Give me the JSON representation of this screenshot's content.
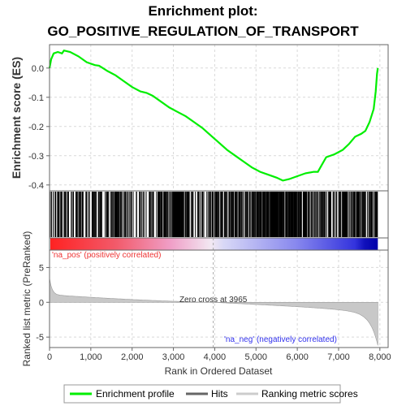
{
  "chart_data": {
    "type": "line",
    "title_line1": "Enrichment plot:",
    "title_line2": "GO_POSITIVE_REGULATION_OF_TRANSPORT",
    "ylabel_top": "Enrichment score (ES)",
    "ylabel_bottom": "Ranked list metric (PreRanked)",
    "xlabel": "Rank in Ordered Dataset",
    "x_range": [
      0,
      8200
    ],
    "es_ylim": [
      -0.42,
      0.08
    ],
    "es_yticks": [
      "0.0",
      "-0.1",
      "-0.2",
      "-0.3",
      "-0.4"
    ],
    "es_ytick_values": [
      0.0,
      -0.1,
      -0.2,
      -0.3,
      -0.4
    ],
    "metric_ylim": [
      -6.5,
      7.5
    ],
    "metric_yticks": [
      "5",
      "0",
      "-5"
    ],
    "metric_ytick_values": [
      5,
      0,
      -5
    ],
    "xticks": [
      "0",
      "1,000",
      "2,000",
      "3,000",
      "4,000",
      "5,000",
      "6,000",
      "7,000",
      "8,000"
    ],
    "xtick_values": [
      0,
      1000,
      2000,
      3000,
      4000,
      5000,
      6000,
      7000,
      8000
    ],
    "zero_cross_label": "Zero cross at 3965",
    "zero_cross": 3965,
    "n_genes": 7950,
    "pos_label": "'na_pos' (positively correlated)",
    "neg_label": "'na_neg' (negatively correlated)",
    "es_curve": [
      [
        0,
        0.0
      ],
      [
        40,
        0.03
      ],
      [
        100,
        0.05
      ],
      [
        200,
        0.055
      ],
      [
        300,
        0.05
      ],
      [
        350,
        0.06
      ],
      [
        500,
        0.055
      ],
      [
        700,
        0.04
      ],
      [
        900,
        0.02
      ],
      [
        1100,
        0.01
      ],
      [
        1200,
        0.008
      ],
      [
        1400,
        -0.01
      ],
      [
        1600,
        -0.025
      ],
      [
        1800,
        -0.045
      ],
      [
        2000,
        -0.065
      ],
      [
        2200,
        -0.08
      ],
      [
        2350,
        -0.085
      ],
      [
        2500,
        -0.095
      ],
      [
        2700,
        -0.115
      ],
      [
        2900,
        -0.135
      ],
      [
        3100,
        -0.15
      ],
      [
        3300,
        -0.165
      ],
      [
        3500,
        -0.185
      ],
      [
        3700,
        -0.205
      ],
      [
        3900,
        -0.23
      ],
      [
        4100,
        -0.255
      ],
      [
        4300,
        -0.28
      ],
      [
        4500,
        -0.3
      ],
      [
        4700,
        -0.32
      ],
      [
        4900,
        -0.34
      ],
      [
        5100,
        -0.355
      ],
      [
        5300,
        -0.365
      ],
      [
        5500,
        -0.375
      ],
      [
        5650,
        -0.385
      ],
      [
        5800,
        -0.38
      ],
      [
        6000,
        -0.37
      ],
      [
        6200,
        -0.36
      ],
      [
        6400,
        -0.355
      ],
      [
        6500,
        -0.355
      ],
      [
        6600,
        -0.33
      ],
      [
        6700,
        -0.305
      ],
      [
        6900,
        -0.295
      ],
      [
        7100,
        -0.28
      ],
      [
        7250,
        -0.26
      ],
      [
        7400,
        -0.235
      ],
      [
        7550,
        -0.225
      ],
      [
        7650,
        -0.215
      ],
      [
        7750,
        -0.185
      ],
      [
        7850,
        -0.14
      ],
      [
        7900,
        -0.08
      ],
      [
        7930,
        -0.02
      ],
      [
        7950,
        0.0
      ]
    ],
    "hit_segments": [
      [
        10,
        1600,
        110
      ],
      [
        1600,
        2400,
        45
      ],
      [
        2400,
        3000,
        55
      ],
      [
        3000,
        3400,
        70
      ],
      [
        3400,
        3950,
        30
      ],
      [
        3950,
        4900,
        90
      ],
      [
        4900,
        5400,
        70
      ],
      [
        5400,
        6100,
        120
      ],
      [
        6100,
        6700,
        50
      ],
      [
        6700,
        7300,
        55
      ],
      [
        7300,
        7950,
        70
      ]
    ],
    "legend": [
      "Enrichment profile",
      "Hits",
      "Ranking metric scores"
    ],
    "colors": {
      "es_line": "#00ee00",
      "hits": "#000000",
      "metric_fill": "#c8c8c8",
      "grid": "#d9d9d9",
      "pos_label": "#ee3333",
      "neg_label": "#3333ee",
      "zero_line": "#aaaaaa"
    }
  }
}
